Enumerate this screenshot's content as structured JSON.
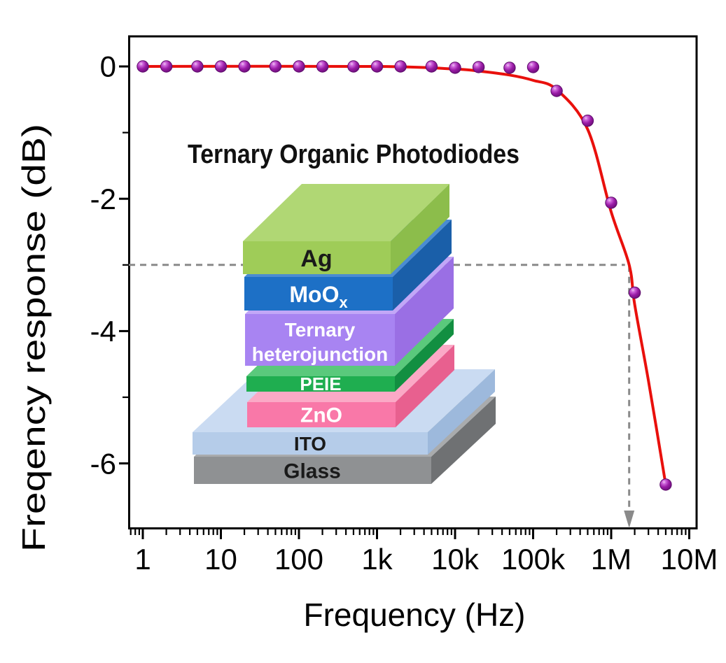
{
  "chart_data": {
    "type": "line",
    "title": "",
    "xlabel": "Frequency (Hz)",
    "ylabel": "Freqency response (dB)",
    "xscale": "log",
    "xlim": [
      0.65,
      13000000
    ],
    "ylim": [
      -7.0,
      0.47
    ],
    "grid": false,
    "x_ticks": [
      {
        "f": 1,
        "label": "1"
      },
      {
        "f": 10,
        "label": "10"
      },
      {
        "f": 100,
        "label": "100"
      },
      {
        "f": 1000,
        "label": "1k"
      },
      {
        "f": 10000,
        "label": "10k"
      },
      {
        "f": 100000,
        "label": "100k"
      },
      {
        "f": 1000000,
        "label": "1M"
      },
      {
        "f": 10000000,
        "label": "10M"
      }
    ],
    "y_ticks_major": [
      {
        "v": 0,
        "label": "0"
      },
      {
        "v": -2,
        "label": "-2"
      },
      {
        "v": -4,
        "label": "-4"
      },
      {
        "v": -6,
        "label": "-6"
      }
    ],
    "y_ticks_minor": [
      -1,
      -3,
      -5
    ],
    "series": [
      {
        "name": "measured-response",
        "type": "scatter",
        "marker": "sphere",
        "color": "#93189f",
        "points": [
          [
            1,
            0
          ],
          [
            2,
            0
          ],
          [
            5,
            0
          ],
          [
            10,
            0
          ],
          [
            20,
            0
          ],
          [
            50,
            0
          ],
          [
            100,
            0
          ],
          [
            200,
            0
          ],
          [
            500,
            0
          ],
          [
            1000,
            0
          ],
          [
            2000,
            0
          ],
          [
            5000,
            0
          ],
          [
            10000,
            -0.02
          ],
          [
            20000,
            -0.01
          ],
          [
            50000,
            -0.02
          ],
          [
            100000,
            -0.01
          ],
          [
            200000,
            -0.37
          ],
          [
            500000,
            -0.82
          ],
          [
            1000000,
            -2.06
          ],
          [
            2000000,
            -3.42
          ],
          [
            5000000,
            -6.32
          ]
        ]
      },
      {
        "name": "fit-curve",
        "type": "line",
        "color": "#e9100c",
        "points": [
          [
            1,
            0
          ],
          [
            1000,
            0
          ],
          [
            10000,
            -0.04
          ],
          [
            20000,
            -0.07
          ],
          [
            50000,
            -0.13
          ],
          [
            100000,
            -0.21
          ],
          [
            200000,
            -0.35
          ],
          [
            500000,
            -0.95
          ],
          [
            1000000,
            -2.2
          ],
          [
            1700000,
            -3.0
          ],
          [
            2000000,
            -3.6
          ],
          [
            3000000,
            -4.75
          ],
          [
            5000000,
            -6.32
          ]
        ]
      }
    ],
    "annotation": {
      "name": "-3dB-bandwidth-marker",
      "cutoff_db": -3,
      "cutoff_hz": 1700000,
      "style": "dashed-lines-with-down-arrow",
      "color": "#8a8a8a"
    }
  },
  "inset": {
    "title": "Ternary Organic Photodiodes",
    "layers": [
      {
        "key": "ag",
        "label": "Ag",
        "face": "#9fcc58",
        "top": "#b0d774",
        "side": "#8cbd4b",
        "text": "#1a1a1a"
      },
      {
        "key": "moox",
        "label": "MoO",
        "sub": "x",
        "face": "#1d70c6",
        "top": "#4a8cd2",
        "side": "#1a5fa9",
        "text": "#ffffff"
      },
      {
        "key": "ternary",
        "label": "Ternary",
        "label2": "heterojunction",
        "face": "#a884f2",
        "top": "#c2a7f7",
        "side": "#9a6fe4",
        "text": "#ffffff"
      },
      {
        "key": "peie",
        "label": "PEIE",
        "face": "#1fae50",
        "top": "#5ac97c",
        "side": "#128f41",
        "text": "#ffffff"
      },
      {
        "key": "zno",
        "label": "ZnO",
        "face": "#f978a8",
        "top": "#fba9c6",
        "side": "#e8608f",
        "text": "#ffffff"
      },
      {
        "key": "ito",
        "label": "ITO",
        "face": "#b5cce9",
        "top": "#cadbf2",
        "side": "#9db9dc",
        "text": "#1a1a1a"
      },
      {
        "key": "glass",
        "label": "Glass",
        "face": "#8f9193",
        "top": "#a9abad",
        "side": "#6f7173",
        "text": "#1a1a1a"
      }
    ]
  },
  "colors": {
    "frame": "#000000",
    "curve_red": "#e9100c",
    "marker_purple": "#93189f",
    "guide_gray": "#8a8a8a",
    "background": "#ffffff"
  }
}
